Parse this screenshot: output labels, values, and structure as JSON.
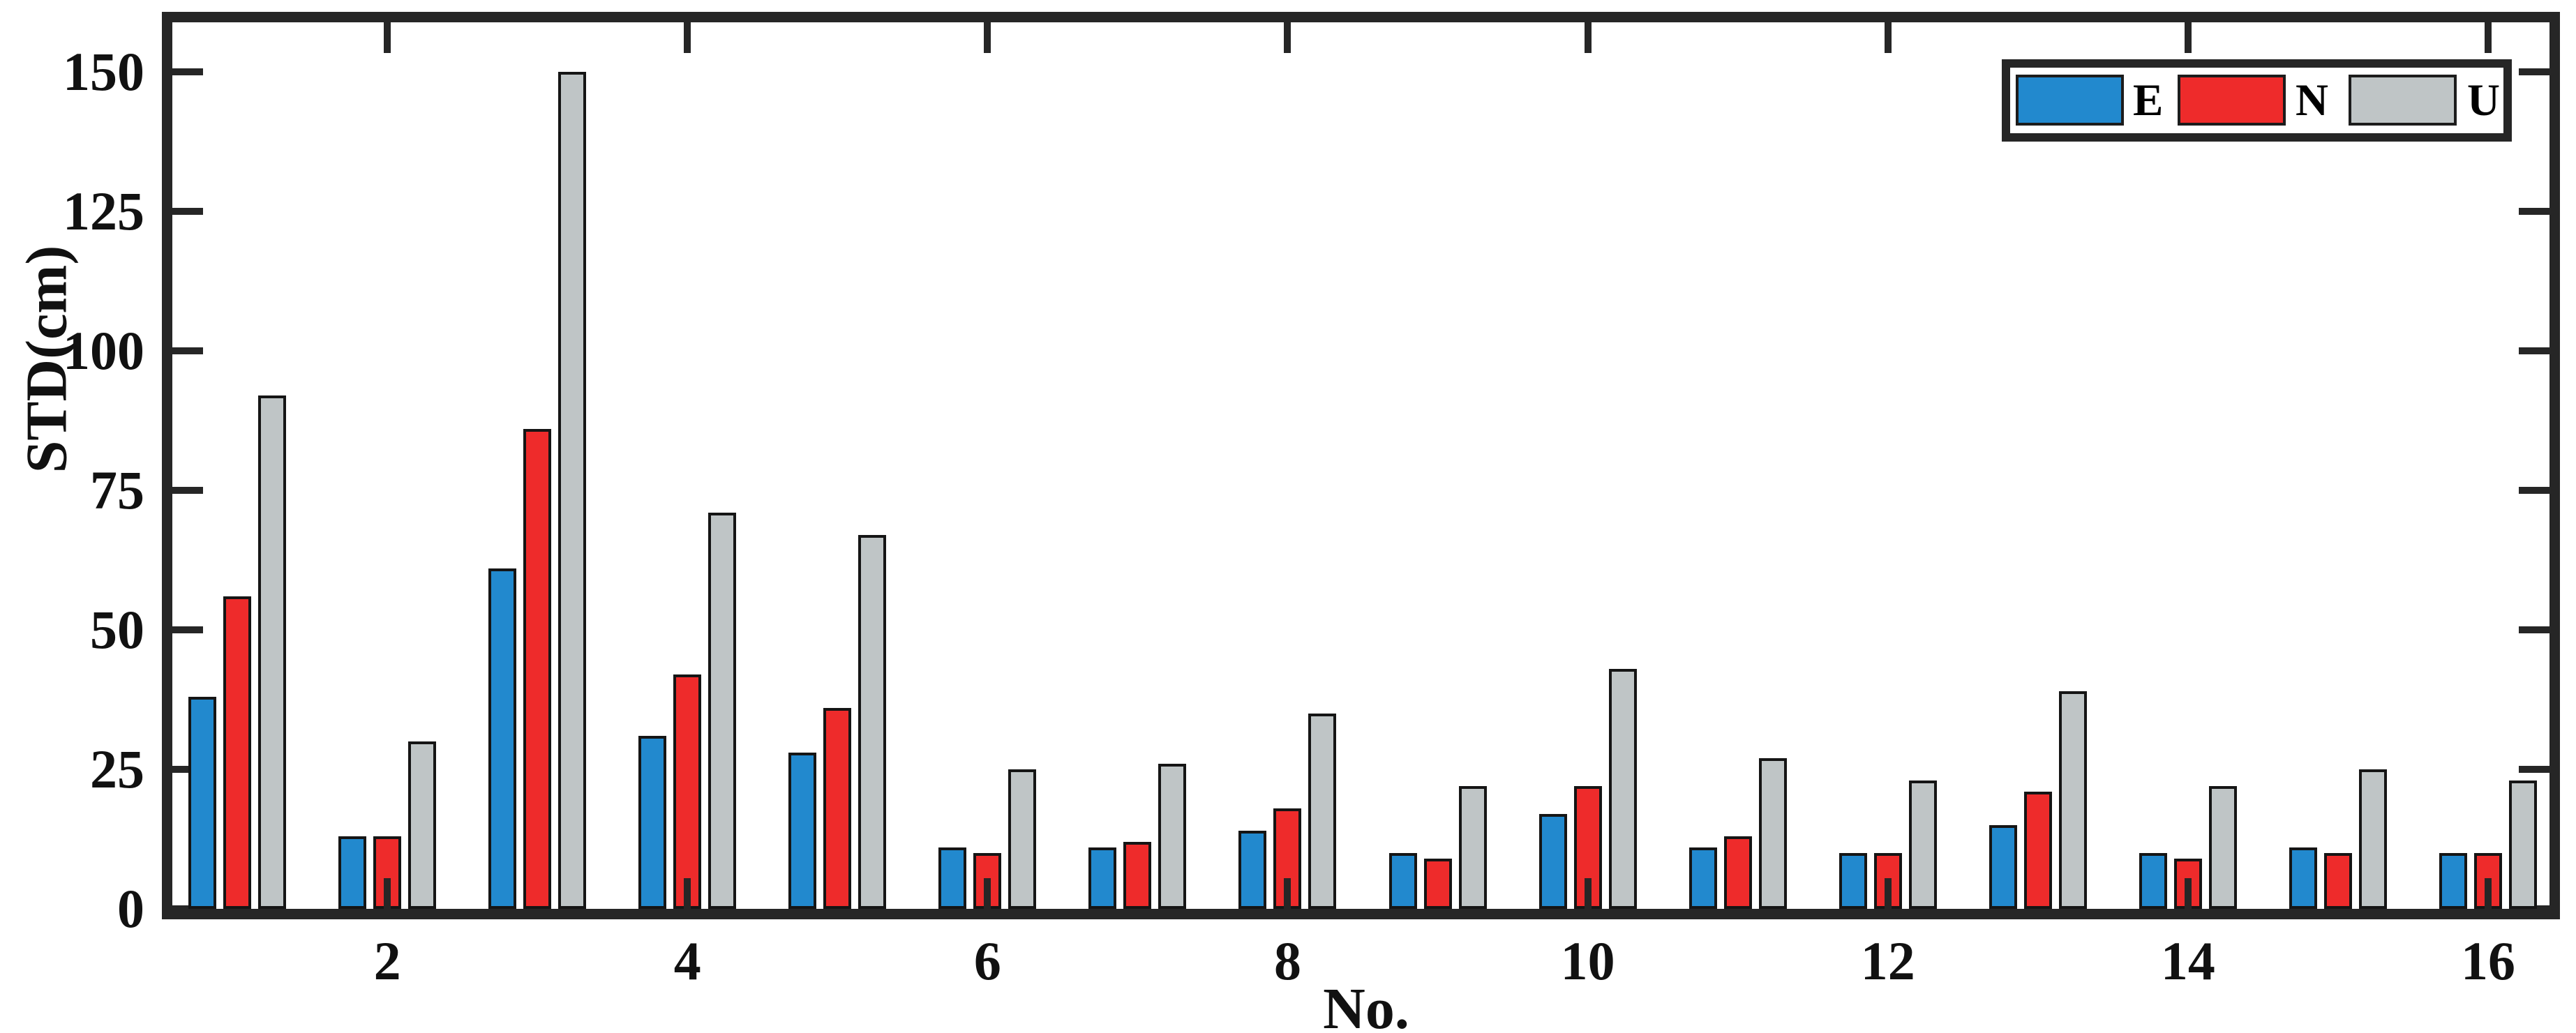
{
  "chart_data": {
    "type": "bar",
    "title": "",
    "xlabel": "No.",
    "ylabel": "STD(cm)",
    "categories": [
      1,
      2,
      3,
      4,
      5,
      6,
      7,
      8,
      9,
      10,
      11,
      12,
      13,
      14,
      15,
      16
    ],
    "series": [
      {
        "name": "E",
        "color": "#2289CE",
        "values": [
          38,
          13,
          61,
          31,
          28,
          11,
          11,
          14,
          10,
          17,
          11,
          10,
          15,
          10,
          11,
          10
        ]
      },
      {
        "name": "N",
        "color": "#EE2B2B",
        "values": [
          56,
          13,
          86,
          42,
          36,
          10,
          12,
          18,
          9,
          22,
          13,
          10,
          21,
          9,
          10,
          10
        ]
      },
      {
        "name": "U",
        "color": "#BFC5C6",
        "values": [
          92,
          30,
          150,
          71,
          67,
          25,
          26,
          35,
          22,
          43,
          27,
          23,
          39,
          22,
          25,
          23
        ]
      }
    ],
    "ylim": [
      0,
      150
    ],
    "yticks": [
      0,
      25,
      50,
      75,
      100,
      125,
      150
    ],
    "y_tick_labels": [
      "0",
      "25",
      "50",
      "75",
      "100",
      "125",
      "150"
    ],
    "xticks": [
      2,
      4,
      6,
      8,
      10,
      12,
      14,
      16
    ],
    "x_tick_labels": [
      "2",
      "4",
      "6",
      "8",
      "10",
      "12",
      "14",
      "16"
    ],
    "legend_position": "top-right",
    "legend_labels": [
      "E",
      "N",
      "U"
    ],
    "grid": false,
    "bar_edge_color": "#151515",
    "axis_color": "#262626",
    "text_color": "#111111"
  }
}
